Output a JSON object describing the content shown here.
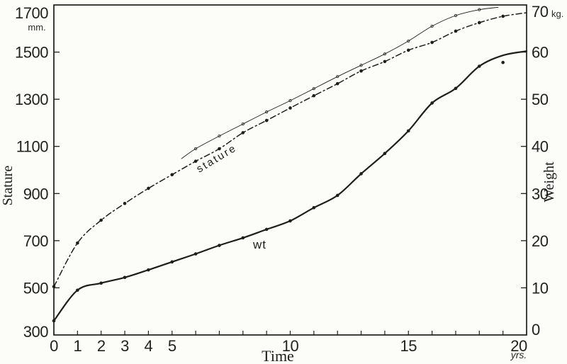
{
  "figure": {
    "background": "#fcfcf9",
    "ink": "#1e1e1e"
  },
  "axes": {
    "left": {
      "title": "Stature",
      "unit": "mm.",
      "tick_labels": [
        "1700",
        "1500",
        "1300",
        "1100",
        "900",
        "700",
        "500",
        "300"
      ]
    },
    "right": {
      "title": "Weight",
      "unit": "kg.",
      "tick_labels": [
        "70",
        "60",
        "50",
        "40",
        "30",
        "20",
        "10",
        "0"
      ]
    },
    "bottom": {
      "title": "Time",
      "unit": "yrs.",
      "tick_labels": [
        "0",
        "1",
        "2",
        "3",
        "4",
        "5",
        "10",
        "15",
        "20"
      ]
    }
  },
  "annotations": {
    "stature_label": "stature",
    "wt_label": "wt"
  },
  "chart_data": {
    "type": "line",
    "title": "",
    "xlabel": "Time",
    "x_unit": "yrs.",
    "xlim": [
      0,
      20
    ],
    "x_ticks_minor_every": 1,
    "x_ticks_labeled": [
      0,
      1,
      2,
      3,
      4,
      5,
      10,
      15,
      20
    ],
    "left_axis": {
      "label": "Stature",
      "unit": "mm.",
      "lim": [
        300,
        1700
      ],
      "ticks": [
        1700,
        1500,
        1300,
        1100,
        900,
        700,
        500,
        300
      ]
    },
    "right_axis": {
      "label": "Weight",
      "unit": "kg.",
      "lim": [
        0,
        70
      ],
      "ticks": [
        70,
        60,
        50,
        40,
        30,
        20,
        10,
        0
      ]
    },
    "grid": false,
    "series": [
      {
        "name": "stature",
        "annotation": "stature",
        "axis": "left",
        "unit": "mm",
        "line_style": "dashed",
        "marker": "filled-dot",
        "marker_max_x": 19,
        "x": [
          0,
          1,
          2,
          3,
          4,
          5,
          6,
          7,
          8,
          9,
          10,
          11,
          12,
          13,
          14,
          15,
          16,
          17,
          18,
          19,
          20
        ],
        "values": [
          505,
          690,
          787,
          858,
          922,
          980,
          1037,
          1090,
          1158,
          1210,
          1263,
          1315,
          1366,
          1420,
          1460,
          1508,
          1541,
          1589,
          1625,
          1652,
          1667
        ]
      },
      {
        "name": "stature-smooth",
        "annotation": "",
        "axis": "left",
        "unit": "mm",
        "line_style": "thin-solid",
        "marker": "small-open-dot",
        "marker_max_x": 18,
        "x": [
          5.4,
          6,
          7,
          8,
          9,
          10,
          11,
          12,
          13,
          14,
          15,
          16,
          17,
          18,
          18.8
        ],
        "values": [
          1048,
          1090,
          1144,
          1195,
          1246,
          1294,
          1345,
          1396,
          1444,
          1492,
          1547,
          1610,
          1655,
          1680,
          1690
        ]
      },
      {
        "name": "weight",
        "annotation": "wt",
        "axis": "right",
        "unit": "kg",
        "line_style": "solid",
        "marker": "filled-dot",
        "marker_max_x": 18,
        "x": [
          0,
          1,
          2,
          3,
          4,
          5,
          6,
          7,
          8,
          9,
          10,
          11,
          12,
          13,
          14,
          15,
          16,
          17,
          18,
          19,
          20
        ],
        "values": [
          3,
          9.5,
          11,
          12.2,
          13.8,
          15.5,
          17.2,
          19,
          20.6,
          22.4,
          24.2,
          27,
          29.6,
          34.2,
          38.5,
          43.3,
          49.2,
          52.3,
          57,
          59.3,
          60.2
        ]
      }
    ],
    "outlier_points": [
      {
        "series": "weight",
        "x": 19,
        "value": 57.8
      }
    ]
  }
}
